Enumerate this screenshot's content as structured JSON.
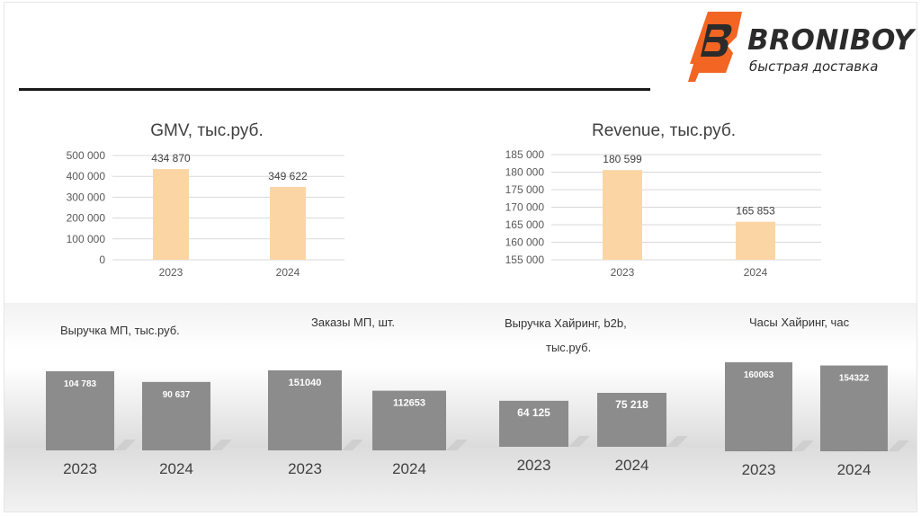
{
  "brand": {
    "name": "BRONIBOY",
    "tagline": "быстрая доставка",
    "logo_color": "#f26522"
  },
  "colors": {
    "top_bar": "#fcd5a5",
    "bottom_bar": "#8c8c8c"
  },
  "chart_data": [
    {
      "type": "bar",
      "title": "GMV, тыс.руб.",
      "categories": [
        "2023",
        "2024"
      ],
      "values": [
        434870,
        349622
      ],
      "value_labels": [
        "434 870",
        "349 622"
      ],
      "ylim": [
        0,
        500000
      ],
      "yticks": [
        "500 000",
        "400 000",
        "300 000",
        "200 000",
        "100 000",
        "0"
      ],
      "grid": true
    },
    {
      "type": "bar",
      "title": "Revenue, тыс.руб.",
      "categories": [
        "2023",
        "2024"
      ],
      "values": [
        180599,
        165853
      ],
      "value_labels": [
        "180 599",
        "165 853"
      ],
      "ylim": [
        155000,
        185000
      ],
      "yticks": [
        "185 000",
        "180 000",
        "175 000",
        "170 000",
        "165 000",
        "160 000",
        "155 000"
      ],
      "grid": true
    },
    {
      "type": "bar",
      "title": "Выручка МП, тыс.руб.",
      "categories": [
        "2023",
        "2024"
      ],
      "values": [
        104783,
        90637
      ],
      "value_labels": [
        "104 783",
        "90 637"
      ]
    },
    {
      "type": "bar",
      "title": "Заказы МП, шт.",
      "categories": [
        "2023",
        "2024"
      ],
      "values": [
        151040,
        112653
      ],
      "value_labels": [
        "151040",
        "112653"
      ]
    },
    {
      "type": "bar",
      "title": "Выручка Хайринг, b2b, тыс.руб.",
      "title_lines": [
        "Выручка Хайринг, b2b,",
        "тыс.руб."
      ],
      "categories": [
        "2023",
        "2024"
      ],
      "values": [
        64125,
        75218
      ],
      "value_labels": [
        "64 125",
        "75 218"
      ]
    },
    {
      "type": "bar",
      "title": "Часы Хайринг, час",
      "categories": [
        "2023",
        "2024"
      ],
      "values": [
        160063,
        154322
      ],
      "value_labels": [
        "160063",
        "154322"
      ]
    }
  ]
}
